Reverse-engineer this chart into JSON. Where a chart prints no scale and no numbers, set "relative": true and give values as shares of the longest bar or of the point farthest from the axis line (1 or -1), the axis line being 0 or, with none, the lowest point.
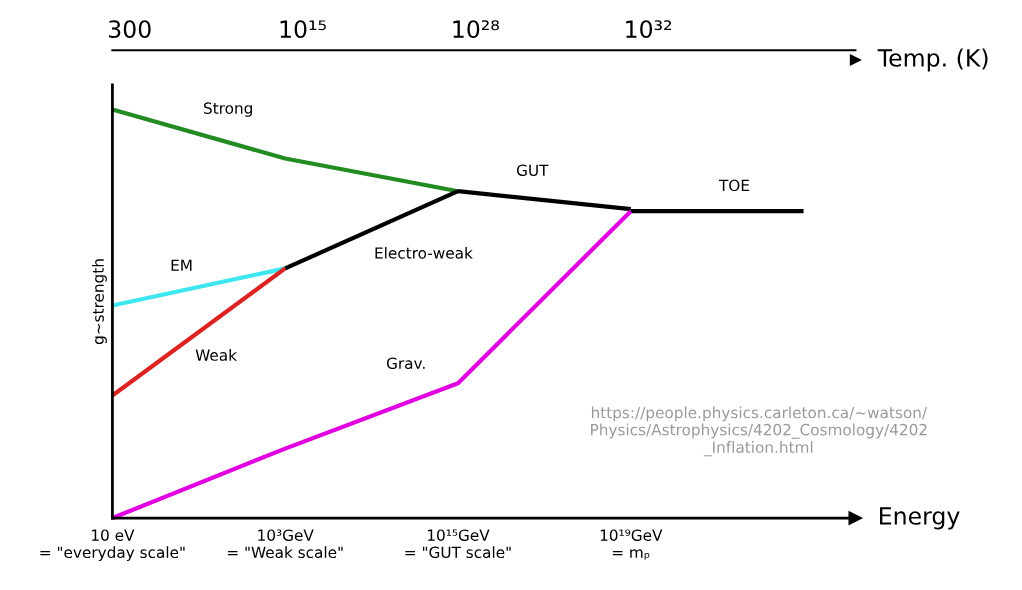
{
  "chart_data": {
    "type": "line",
    "relative": true,
    "ylabel": "g~strength",
    "xlabel": "Energy",
    "x2label": "Temp. (K)",
    "categories": [
      "10 eV\n= \"everyday scale\"",
      "10³GeV\n= \"Weak scale\"",
      "10¹⁵GeV\n= \"GUT scale\"",
      "10¹⁹GeV\n= mₚ",
      null
    ],
    "legend": false,
    "grid": false,
    "series": [
      {
        "name": "Strong",
        "color": "#228b22",
        "values": [
          1.0,
          0.88,
          0.8,
          null,
          null
        ]
      },
      {
        "name": "EM",
        "color": "#3ee6f0",
        "values": [
          0.52,
          0.611,
          null,
          null,
          null
        ]
      },
      {
        "name": "Weak",
        "color": "#dd2222",
        "values": [
          0.3,
          0.611,
          null,
          null,
          null
        ]
      },
      {
        "name": "Electro-weak",
        "color": "#000000",
        "values": [
          null,
          0.611,
          0.8,
          null,
          null
        ]
      },
      {
        "name": "GUT",
        "color": "#000000",
        "values": [
          null,
          null,
          0.8,
          0.756,
          null
        ]
      },
      {
        "name": "TOE",
        "color": "#000000",
        "values": [
          null,
          null,
          null,
          0.751,
          0.751
        ]
      },
      {
        "name": "Grav.",
        "color": "#e000e0",
        "values": [
          0,
          0.17,
          0.33,
          0.751,
          null
        ]
      }
    ],
    "annotations": [
      "300",
      "10¹⁵",
      "10²⁸",
      "10³²",
      "https://people.physics.carleton.ca/~watson/\nPhysics/Astrophysics/4202_Cosmology/4202\n_Inflation.html"
    ]
  }
}
